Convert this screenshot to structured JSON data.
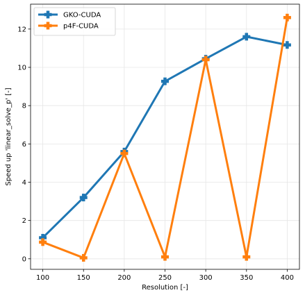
{
  "chart_data": {
    "type": "line",
    "title": "",
    "xlabel": "Resolution [-]",
    "ylabel": "Speed up 'linear_solve_p' [-]",
    "x": [
      100,
      150,
      200,
      250,
      300,
      350,
      400
    ],
    "xlim": [
      85,
      415
    ],
    "ylim": [
      -0.55,
      13.3
    ],
    "xticks": [
      100,
      150,
      200,
      250,
      300,
      350,
      400
    ],
    "yticks": [
      0,
      2,
      4,
      6,
      8,
      10,
      12
    ],
    "grid": true,
    "legend_position": "top-left",
    "series": [
      {
        "name": "GKO-CUDA",
        "color": "#1f77b4",
        "marker": "plus",
        "values": [
          1.1,
          3.2,
          5.6,
          9.27,
          10.45,
          11.6,
          11.17
        ]
      },
      {
        "name": "p4F-CUDA",
        "color": "#ff7f0e",
        "marker": "plus",
        "values": [
          0.87,
          0.05,
          5.5,
          0.1,
          10.4,
          0.1,
          12.6
        ]
      }
    ]
  }
}
